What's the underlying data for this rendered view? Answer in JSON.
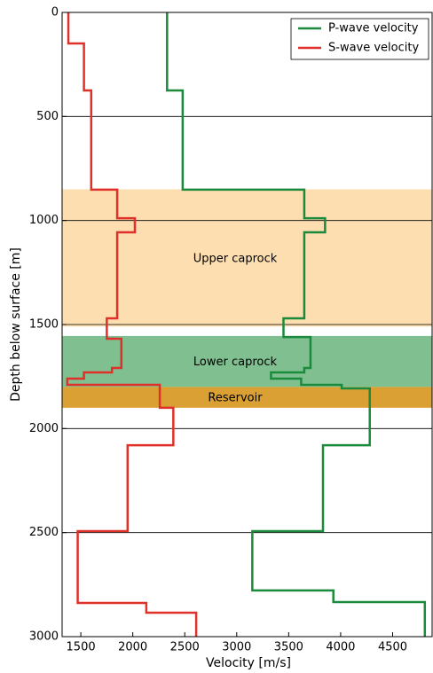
{
  "chart_data": {
    "type": "step",
    "xlabel": "Velocity [m/s]",
    "ylabel": "Depth below surface [m]",
    "xlim": [
      1320,
      4880
    ],
    "ylim": [
      0,
      3000
    ],
    "invert_y": true,
    "xticks": [
      1500,
      2000,
      2500,
      3000,
      3500,
      4000,
      4500
    ],
    "yticks": [
      0,
      500,
      1000,
      1500,
      2000,
      2500,
      3000
    ],
    "grid": "y",
    "legend": "upper right",
    "regions": [
      {
        "label": "Upper caprock",
        "color": "#fddeb0",
        "ylim": [
          850,
          1510
        ]
      },
      {
        "label": "Lower caprock",
        "color": "#80bf90",
        "ylim": [
          1555,
          1800
        ]
      },
      {
        "label": "Reservoir",
        "color": "#dba033",
        "ylim": [
          1800,
          1900
        ]
      }
    ],
    "series": [
      {
        "name": "P-wave velocity",
        "color": "#1b8a3c",
        "x": [
          2330,
          2330,
          2480,
          2480,
          3650,
          3650,
          3850,
          3850,
          3650,
          3650,
          3450,
          3450,
          3710,
          3710,
          3650,
          3650,
          3330,
          3330,
          3620,
          3620,
          4010,
          4010,
          4280,
          4280,
          3830,
          3830,
          3150,
          3150,
          3930,
          3930,
          4810,
          4810
        ],
        "y": [
          0,
          375,
          375,
          852,
          852,
          989,
          989,
          1057,
          1057,
          1470,
          1470,
          1560,
          1560,
          1709,
          1709,
          1730,
          1730,
          1760,
          1760,
          1790,
          1790,
          1807,
          1807,
          2080,
          2080,
          2493,
          2493,
          2778,
          2778,
          2834,
          2834,
          3000
        ]
      },
      {
        "name": "S-wave velocity",
        "color": "#e0302a",
        "x": [
          1380,
          1380,
          1530,
          1530,
          1600,
          1600,
          1850,
          1850,
          2020,
          2020,
          1850,
          1850,
          1750,
          1750,
          1890,
          1890,
          1800,
          1800,
          1530,
          1530,
          1370,
          1370,
          2260,
          2260,
          2390,
          2390,
          1950,
          1950,
          1470,
          1470,
          2130,
          2130,
          2610,
          2610
        ],
        "y": [
          0,
          149,
          149,
          375,
          375,
          852,
          852,
          989,
          989,
          1057,
          1057,
          1470,
          1470,
          1568,
          1568,
          1709,
          1709,
          1730,
          1730,
          1760,
          1760,
          1790,
          1790,
          1900,
          1900,
          2080,
          2080,
          2493,
          2493,
          2838,
          2838,
          2885,
          2885,
          3000
        ]
      }
    ]
  }
}
